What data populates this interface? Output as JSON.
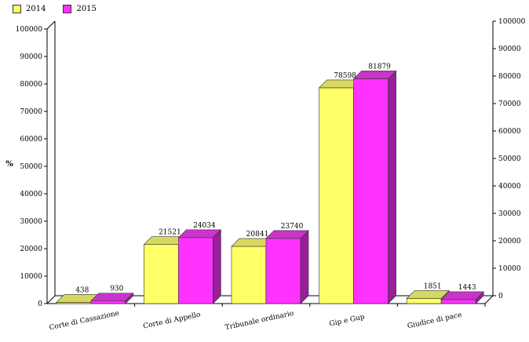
{
  "chart_data": {
    "type": "bar",
    "categories": [
      "Corte di Cassazione",
      "Corte di Appello",
      "Tribunale ordinario",
      "Gip e Gup",
      "Giudice di pace"
    ],
    "series": [
      {
        "name": "2014",
        "values": [
          438,
          21521,
          20841,
          78598,
          1851
        ]
      },
      {
        "name": "2015",
        "values": [
          930,
          24034,
          23740,
          81879,
          1443
        ]
      }
    ],
    "ylabel": "%",
    "ylim": [
      0,
      100000
    ],
    "yticks": [
      0,
      10000,
      20000,
      30000,
      40000,
      50000,
      60000,
      70000,
      80000,
      90000,
      100000
    ],
    "legend_position": "top-left",
    "grid": false,
    "data_labels": true
  },
  "colors": {
    "2014": {
      "front": "#ffff66",
      "top": "#d8d860",
      "side": "#b8b800"
    },
    "2015": {
      "front": "#ff33ff",
      "top": "#cc33cc",
      "side": "#991f99"
    }
  }
}
